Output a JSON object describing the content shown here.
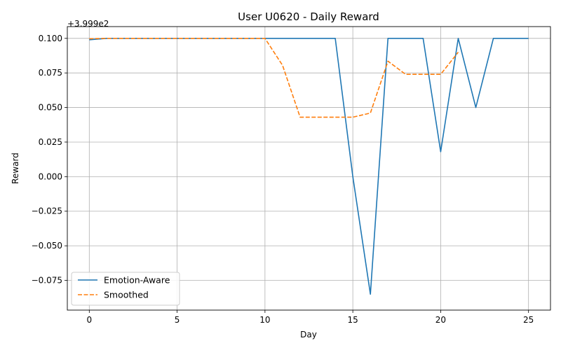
{
  "chart_data": {
    "type": "line",
    "title": "User U0620 - Daily Reward",
    "xlabel": "Day",
    "ylabel": "Reward",
    "offset_label": "+3.999e2",
    "xlim": [
      -1.25,
      26.25
    ],
    "ylim": [
      -0.0965,
      0.1085
    ],
    "xticks": [
      0,
      5,
      10,
      15,
      20,
      25
    ],
    "xtick_labels": [
      "0",
      "5",
      "10",
      "15",
      "20",
      "25"
    ],
    "yticks": [
      -0.075,
      -0.05,
      -0.025,
      0.0,
      0.025,
      0.05,
      0.075,
      0.1
    ],
    "ytick_labels": [
      "−0.075",
      "−0.050",
      "−0.025",
      "0.000",
      "0.025",
      "0.050",
      "0.075",
      "0.100"
    ],
    "grid": true,
    "legend_position": "lower-left",
    "series": [
      {
        "name": "Emotion-Aware",
        "color": "#1f77b4",
        "dash": "solid",
        "x": [
          0,
          1,
          2,
          3,
          4,
          5,
          6,
          7,
          8,
          9,
          10,
          11,
          12,
          13,
          14,
          15,
          16,
          17,
          18,
          19,
          20,
          21,
          22,
          23,
          24,
          25
        ],
        "y": [
          0.099,
          0.1,
          0.1,
          0.1,
          0.1,
          0.1,
          0.1,
          0.1,
          0.1,
          0.1,
          0.1,
          0.1,
          0.1,
          0.1,
          0.1,
          0.0,
          -0.085,
          0.1,
          0.1,
          0.1,
          0.018,
          0.1,
          0.05,
          0.1,
          0.1,
          0.1
        ]
      },
      {
        "name": "Smoothed",
        "color": "#ff7f0e",
        "dash": "dashed",
        "x": [
          0,
          1,
          2,
          3,
          4,
          5,
          6,
          7,
          8,
          9,
          10,
          11,
          12,
          13,
          14,
          15,
          16,
          17,
          18,
          19,
          20,
          21
        ],
        "y": [
          0.0997,
          0.1,
          0.1,
          0.1,
          0.1,
          0.1,
          0.1,
          0.1,
          0.1,
          0.1,
          0.1,
          0.0805,
          0.043,
          0.043,
          0.043,
          0.043,
          0.046,
          0.0835,
          0.074,
          0.074,
          0.074,
          0.09
        ]
      }
    ]
  }
}
